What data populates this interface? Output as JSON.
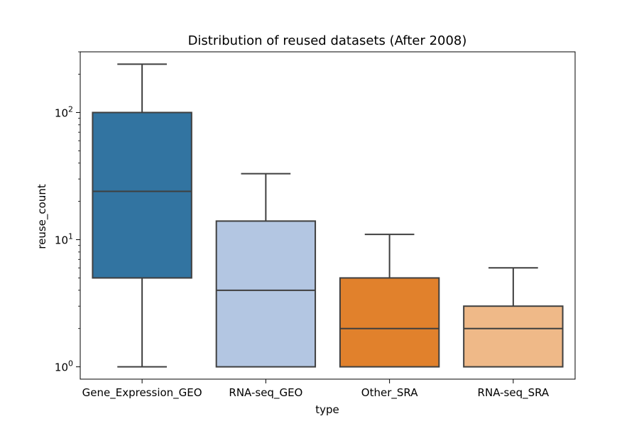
{
  "chart_data": {
    "type": "box",
    "title": "Distribution of reused datasets (After 2008)",
    "xlabel": "type",
    "ylabel": "reuse_count",
    "yscale": "log",
    "ylim": [
      0.8,
      300
    ],
    "y_ticks": [
      {
        "value": 1,
        "base": "10",
        "exp": "0"
      },
      {
        "value": 10,
        "base": "10",
        "exp": "1"
      },
      {
        "value": 100,
        "base": "10",
        "exp": "2"
      }
    ],
    "grid": false,
    "categories": [
      "Gene_Expression_GEO",
      "RNA-seq_GEO",
      "Other_SRA",
      "RNA-seq_SRA"
    ],
    "boxes": [
      {
        "category": "Gene_Expression_GEO",
        "whisker_low": 1,
        "q1": 5,
        "median": 24,
        "q3": 100,
        "whisker_high": 240,
        "color": "#3274a1"
      },
      {
        "category": "RNA-seq_GEO",
        "whisker_low": 1,
        "q1": 1,
        "median": 4,
        "q3": 14,
        "whisker_high": 33,
        "color": "#b3c6e2"
      },
      {
        "category": "Other_SRA",
        "whisker_low": 1,
        "q1": 1,
        "median": 2,
        "q3": 5,
        "whisker_high": 11,
        "color": "#e1812c"
      },
      {
        "category": "RNA-seq_SRA",
        "whisker_low": 1,
        "q1": 1,
        "median": 2,
        "q3": 3,
        "whisker_high": 6,
        "color": "#efb988"
      }
    ],
    "line_color": "#3f3f3f"
  }
}
